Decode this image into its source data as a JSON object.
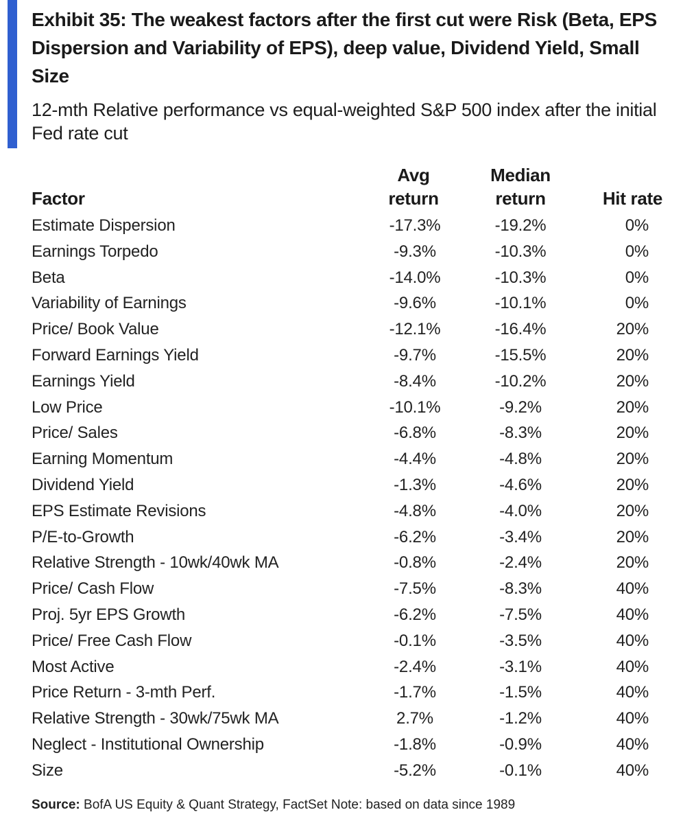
{
  "exhibit": {
    "accent_color": "#2f5fd0",
    "title": "Exhibit 35: The weakest factors after the first cut were Risk (Beta, EPS Dispersion and Variability of EPS), deep value, Dividend Yield, Small Size",
    "subtitle": "12-mth Relative performance vs equal-weighted S&P 500 index after the initial Fed rate cut"
  },
  "table": {
    "headers": {
      "factor": "Factor",
      "avg_line1": "Avg",
      "avg_line2": "return",
      "median_line1": "Median",
      "median_line2": "return",
      "hit": "Hit rate"
    },
    "rows": [
      {
        "factor": "Estimate Dispersion",
        "avg": "-17.3%",
        "median": "-19.2%",
        "hit": "0%"
      },
      {
        "factor": "Earnings Torpedo",
        "avg": "-9.3%",
        "median": "-10.3%",
        "hit": "0%"
      },
      {
        "factor": "Beta",
        "avg": "-14.0%",
        "median": "-10.3%",
        "hit": "0%"
      },
      {
        "factor": "Variability of Earnings",
        "avg": "-9.6%",
        "median": "-10.1%",
        "hit": "0%"
      },
      {
        "factor": "Price/ Book Value",
        "avg": "-12.1%",
        "median": "-16.4%",
        "hit": "20%"
      },
      {
        "factor": "Forward Earnings Yield",
        "avg": "-9.7%",
        "median": "-15.5%",
        "hit": "20%"
      },
      {
        "factor": "Earnings Yield",
        "avg": "-8.4%",
        "median": "-10.2%",
        "hit": "20%"
      },
      {
        "factor": "Low Price",
        "avg": "-10.1%",
        "median": "-9.2%",
        "hit": "20%"
      },
      {
        "factor": "Price/ Sales",
        "avg": "-6.8%",
        "median": "-8.3%",
        "hit": "20%"
      },
      {
        "factor": "Earning Momentum",
        "avg": "-4.4%",
        "median": "-4.8%",
        "hit": "20%"
      },
      {
        "factor": "Dividend Yield",
        "avg": "-1.3%",
        "median": "-4.6%",
        "hit": "20%"
      },
      {
        "factor": "EPS Estimate Revisions",
        "avg": "-4.8%",
        "median": "-4.0%",
        "hit": "20%"
      },
      {
        "factor": "P/E-to-Growth",
        "avg": "-6.2%",
        "median": "-3.4%",
        "hit": "20%"
      },
      {
        "factor": "Relative Strength - 10wk/40wk MA",
        "avg": "-0.8%",
        "median": "-2.4%",
        "hit": "20%"
      },
      {
        "factor": "Price/ Cash Flow",
        "avg": "-7.5%",
        "median": "-8.3%",
        "hit": "40%"
      },
      {
        "factor": "Proj. 5yr EPS Growth",
        "avg": "-6.2%",
        "median": "-7.5%",
        "hit": "40%"
      },
      {
        "factor": "Price/ Free Cash Flow",
        "avg": "-0.1%",
        "median": "-3.5%",
        "hit": "40%"
      },
      {
        "factor": "Most Active",
        "avg": "-2.4%",
        "median": "-3.1%",
        "hit": "40%"
      },
      {
        "factor": "Price Return - 3-mth Perf.",
        "avg": "-1.7%",
        "median": "-1.5%",
        "hit": "40%"
      },
      {
        "factor": "Relative Strength - 30wk/75wk MA",
        "avg": "2.7%",
        "median": "-1.2%",
        "hit": "40%"
      },
      {
        "factor": "Neglect - Institutional Ownership",
        "avg": "-1.8%",
        "median": "-0.9%",
        "hit": "40%"
      },
      {
        "factor": "Size",
        "avg": "-5.2%",
        "median": "-0.1%",
        "hit": "40%"
      }
    ]
  },
  "footer": {
    "source_label": "Source:",
    "source_text": " BofA US Equity & Quant Strategy, FactSet Note: based on data since 1989"
  }
}
